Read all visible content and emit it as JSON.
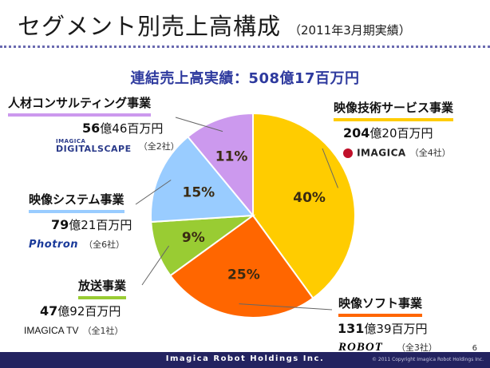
{
  "title": "セグメント別売上高構成",
  "title_note": "（2011年3月期実績）",
  "headline": "連結売上高実績：508億17百万円",
  "chart_data": {
    "type": "pie",
    "title": "セグメント別売上高構成",
    "slices": [
      {
        "name": "映像技術サービス事業",
        "value": 40,
        "label": "40%",
        "amount_num": "204",
        "amount_oku": "億",
        "amount_rest": "20百万円",
        "companies": "（全4社）",
        "logo": "IMAGICA",
        "color": "#ffcc00"
      },
      {
        "name": "映像ソフト事業",
        "value": 25,
        "label": "25%",
        "amount_num": "131",
        "amount_oku": "億",
        "amount_rest": "39百万円",
        "companies": "（全3社）",
        "logo": "ROBOT",
        "color": "#ff6600"
      },
      {
        "name": "放送事業",
        "value": 9,
        "label": "9%",
        "amount_num": "47",
        "amount_oku": "億",
        "amount_rest": "92百万円",
        "companies": "（全1社）",
        "logo": "IMAGICA TV",
        "color": "#99cc33"
      },
      {
        "name": "映像システム事業",
        "value": 15,
        "label": "15%",
        "amount_num": "79",
        "amount_oku": "億",
        "amount_rest": "21百万円",
        "companies": "（全6社）",
        "logo": "Photron",
        "color": "#99ccff"
      },
      {
        "name": "人材コンサルティング事業",
        "value": 11,
        "label": "11%",
        "amount_num": "56",
        "amount_oku": "億",
        "amount_rest": "46百万円",
        "companies": "（全2社）",
        "logo_top": "IMAGICA",
        "logo": "DIGITALSCAPE",
        "color": "#cc99ee"
      }
    ]
  },
  "footer": {
    "company": "Imagica Robot Holdings Inc.",
    "copyright": "© 2011 Copyright Imagica Robot Holdings Inc.",
    "page": "6"
  }
}
